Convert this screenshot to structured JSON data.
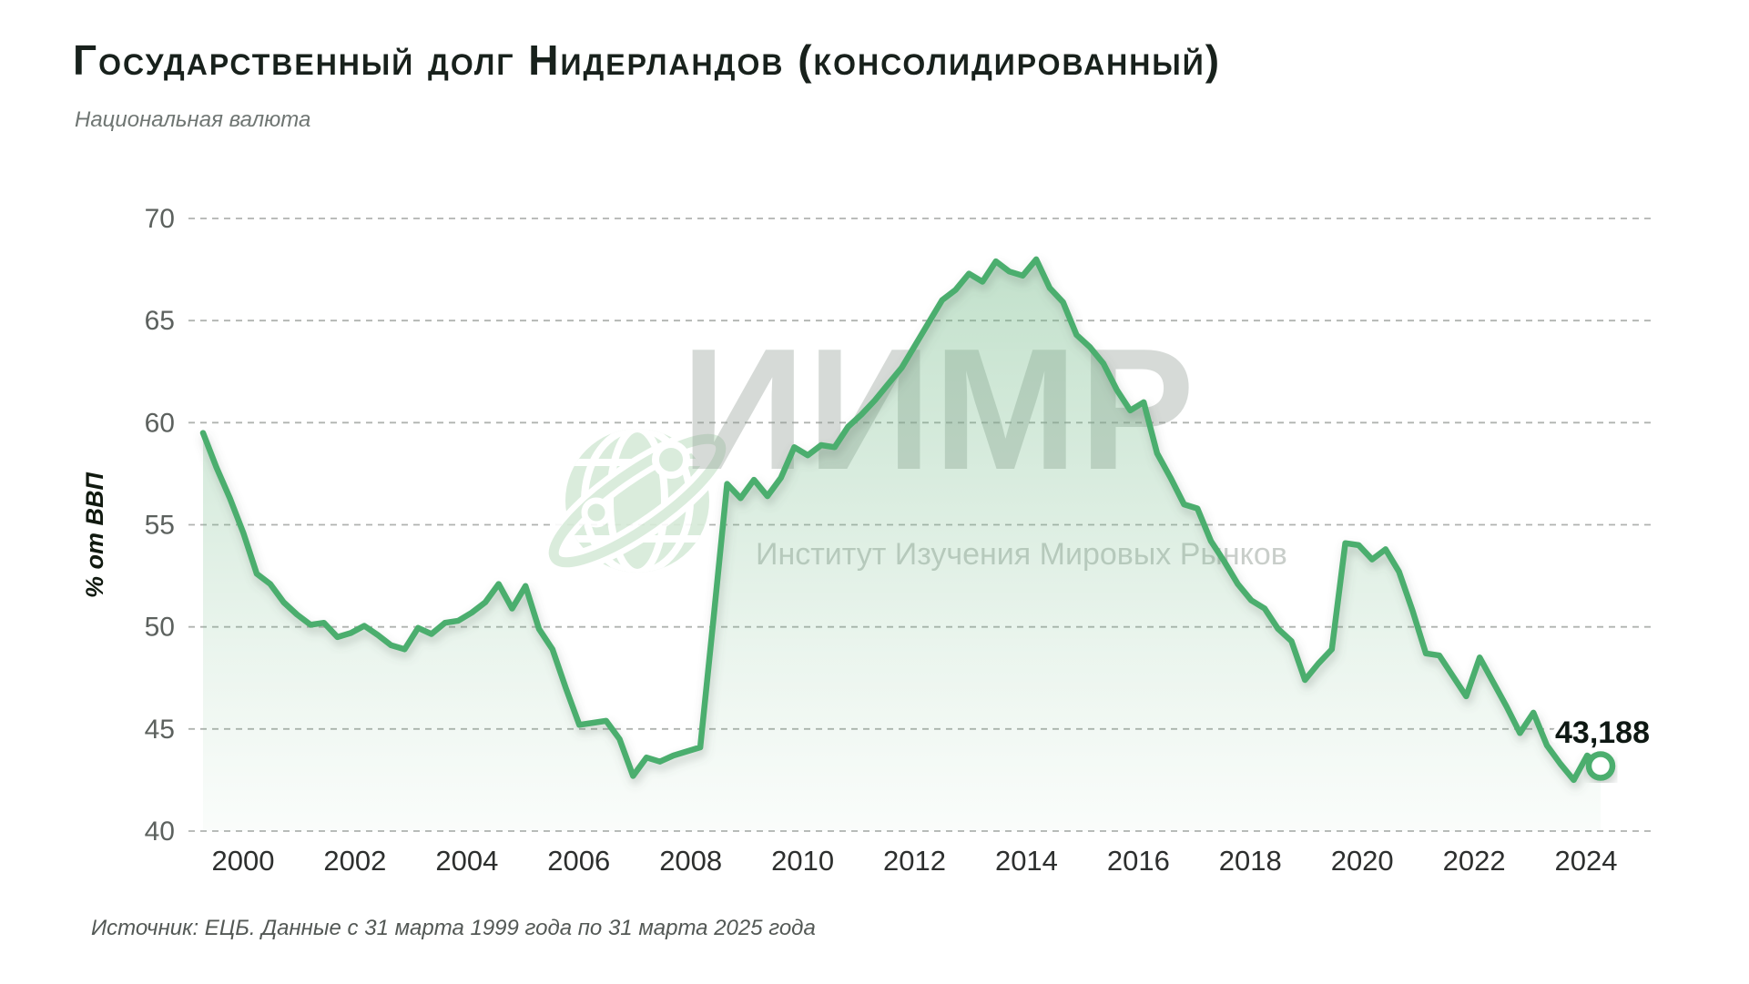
{
  "title": "Государственный долг Нидерландов (консолидированный)",
  "subtitle": "Национальная валюта",
  "source": "Источник: ЕЦБ. Данные с 31 марта 1999 года по 31 марта 2025 года",
  "last_value_label": "43,188",
  "watermark": {
    "logo_text": "ИИМР",
    "org_name": "Институт Изучения Мировых Рынков",
    "icon": "globe-icon"
  },
  "colors": {
    "line_green": "#4cae6e",
    "area_green": "#6eb784",
    "grid_gray": "#b0b3b0",
    "watermark_gray": "#8f9a92",
    "globe_green": "#d7ebd9",
    "text_dark": "#18211c"
  },
  "chart_data": {
    "type": "area",
    "title": "Государственный долг Нидерландов (консолидированный)",
    "subtitle": "Национальная валюта",
    "ylabel": "% от ВВП",
    "xlabel": "",
    "ylim": [
      40,
      70
    ],
    "grid": "horizontal-dashed",
    "legend": "none",
    "frequency": "quarterly",
    "x_start": "1999-Q1",
    "x_end": "2025-Q1",
    "y_ticks": [
      40,
      45,
      50,
      55,
      60,
      65,
      70
    ],
    "x_tick_years": [
      2000,
      2002,
      2004,
      2006,
      2008,
      2010,
      2012,
      2014,
      2016,
      2018,
      2020,
      2022,
      2024
    ],
    "last_value": 43.188,
    "values": [
      59.5,
      57.8,
      56.3,
      54.6,
      52.6,
      52.1,
      51.2,
      50.6,
      50.1,
      50.2,
      49.5,
      49.7,
      50.05,
      49.6,
      49.1,
      48.9,
      49.95,
      49.65,
      50.2,
      50.3,
      50.7,
      51.2,
      52.1,
      50.9,
      52.0,
      49.9,
      48.9,
      47.0,
      45.2,
      45.3,
      45.4,
      44.5,
      42.7,
      43.6,
      43.4,
      43.7,
      43.9,
      44.1,
      50.5,
      57.0,
      56.3,
      57.2,
      56.4,
      57.3,
      58.8,
      58.4,
      58.9,
      58.8,
      59.8,
      60.4,
      61.1,
      61.9,
      62.7,
      63.8,
      64.9,
      66.0,
      66.5,
      67.3,
      66.9,
      67.9,
      67.4,
      67.2,
      68.0,
      66.6,
      65.9,
      64.3,
      63.7,
      62.9,
      61.6,
      60.6,
      61.0,
      58.5,
      57.3,
      56.0,
      55.8,
      54.2,
      53.2,
      52.1,
      51.3,
      50.9,
      49.9,
      49.3,
      47.4,
      48.2,
      48.9,
      54.1,
      54.0,
      53.3,
      53.8,
      52.7,
      50.8,
      48.7,
      48.6,
      47.6,
      46.6,
      48.5,
      47.3,
      46.1,
      44.8,
      45.8,
      44.2,
      43.3,
      42.5,
      43.7,
      43.188
    ]
  }
}
